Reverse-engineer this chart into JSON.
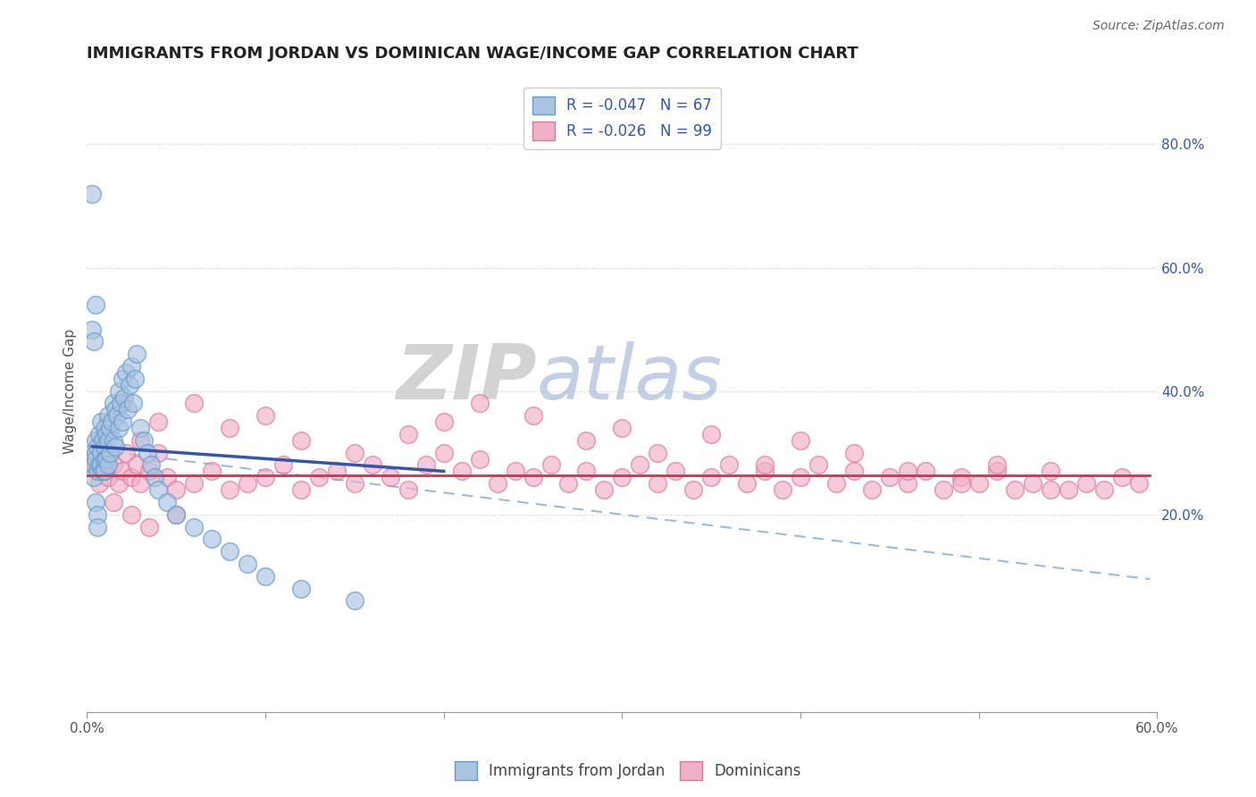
{
  "title": "IMMIGRANTS FROM JORDAN VS DOMINICAN WAGE/INCOME GAP CORRELATION CHART",
  "source": "Source: ZipAtlas.com",
  "ylabel": "Wage/Income Gap",
  "xlim": [
    0.0,
    0.6
  ],
  "ylim": [
    -0.12,
    0.92
  ],
  "yticks_right": [
    0.2,
    0.4,
    0.6,
    0.8
  ],
  "ytick_right_labels": [
    "20.0%",
    "40.0%",
    "60.0%",
    "80.0%"
  ],
  "jordan_color": "#aac4e0",
  "jordan_edge": "#6699cc",
  "dominican_color": "#f0b0c8",
  "dominican_edge": "#dd7799",
  "jordan_R": -0.047,
  "jordan_N": 67,
  "dominican_R": -0.026,
  "dominican_N": 99,
  "jordan_line_color": "#3355aa",
  "dominican_line_color": "#cc3355",
  "dashed_line_color": "#99bbdd",
  "watermark_zip": "ZIP",
  "watermark_atlas": "atlas",
  "background_color": "#ffffff",
  "grid_color": "#cccccc",
  "legend_text_color": "#3355bb",
  "title_color": "#222222",
  "jordan_scatter_x": [
    0.003,
    0.004,
    0.004,
    0.005,
    0.005,
    0.005,
    0.006,
    0.006,
    0.007,
    0.007,
    0.008,
    0.008,
    0.008,
    0.009,
    0.009,
    0.01,
    0.01,
    0.01,
    0.01,
    0.011,
    0.011,
    0.012,
    0.012,
    0.012,
    0.013,
    0.013,
    0.014,
    0.015,
    0.015,
    0.016,
    0.016,
    0.017,
    0.018,
    0.018,
    0.019,
    0.02,
    0.02,
    0.021,
    0.022,
    0.023,
    0.024,
    0.025,
    0.026,
    0.027,
    0.028,
    0.03,
    0.032,
    0.034,
    0.036,
    0.038,
    0.04,
    0.045,
    0.05,
    0.06,
    0.07,
    0.08,
    0.09,
    0.1,
    0.12,
    0.15,
    0.003,
    0.004,
    0.005,
    0.005,
    0.006,
    0.006,
    0.003
  ],
  "jordan_scatter_y": [
    0.3,
    0.28,
    0.26,
    0.32,
    0.3,
    0.29,
    0.31,
    0.27,
    0.33,
    0.28,
    0.35,
    0.3,
    0.28,
    0.32,
    0.27,
    0.34,
    0.31,
    0.29,
    0.27,
    0.33,
    0.29,
    0.36,
    0.32,
    0.28,
    0.34,
    0.3,
    0.35,
    0.38,
    0.32,
    0.37,
    0.31,
    0.36,
    0.4,
    0.34,
    0.38,
    0.42,
    0.35,
    0.39,
    0.43,
    0.37,
    0.41,
    0.44,
    0.38,
    0.42,
    0.46,
    0.34,
    0.32,
    0.3,
    0.28,
    0.26,
    0.24,
    0.22,
    0.2,
    0.18,
    0.16,
    0.14,
    0.12,
    0.1,
    0.08,
    0.06,
    0.5,
    0.48,
    0.54,
    0.22,
    0.2,
    0.18,
    0.72
  ],
  "dominican_scatter_x": [
    0.005,
    0.007,
    0.008,
    0.01,
    0.012,
    0.015,
    0.018,
    0.02,
    0.022,
    0.025,
    0.028,
    0.03,
    0.035,
    0.04,
    0.045,
    0.05,
    0.06,
    0.07,
    0.08,
    0.09,
    0.1,
    0.11,
    0.12,
    0.13,
    0.14,
    0.15,
    0.16,
    0.17,
    0.18,
    0.19,
    0.2,
    0.21,
    0.22,
    0.23,
    0.24,
    0.25,
    0.26,
    0.27,
    0.28,
    0.29,
    0.3,
    0.31,
    0.32,
    0.33,
    0.34,
    0.35,
    0.36,
    0.37,
    0.38,
    0.39,
    0.4,
    0.41,
    0.42,
    0.43,
    0.44,
    0.45,
    0.46,
    0.47,
    0.48,
    0.49,
    0.5,
    0.51,
    0.52,
    0.53,
    0.54,
    0.55,
    0.56,
    0.57,
    0.58,
    0.59,
    0.008,
    0.012,
    0.02,
    0.03,
    0.04,
    0.06,
    0.08,
    0.1,
    0.12,
    0.15,
    0.18,
    0.2,
    0.22,
    0.25,
    0.28,
    0.3,
    0.32,
    0.35,
    0.38,
    0.4,
    0.43,
    0.46,
    0.49,
    0.51,
    0.54,
    0.015,
    0.025,
    0.035,
    0.05
  ],
  "dominican_scatter_y": [
    0.28,
    0.25,
    0.3,
    0.27,
    0.26,
    0.28,
    0.25,
    0.27,
    0.3,
    0.26,
    0.28,
    0.25,
    0.27,
    0.3,
    0.26,
    0.24,
    0.25,
    0.27,
    0.24,
    0.25,
    0.26,
    0.28,
    0.24,
    0.26,
    0.27,
    0.25,
    0.28,
    0.26,
    0.24,
    0.28,
    0.3,
    0.27,
    0.29,
    0.25,
    0.27,
    0.26,
    0.28,
    0.25,
    0.27,
    0.24,
    0.26,
    0.28,
    0.25,
    0.27,
    0.24,
    0.26,
    0.28,
    0.25,
    0.27,
    0.24,
    0.26,
    0.28,
    0.25,
    0.27,
    0.24,
    0.26,
    0.25,
    0.27,
    0.24,
    0.26,
    0.25,
    0.27,
    0.24,
    0.25,
    0.27,
    0.24,
    0.25,
    0.24,
    0.26,
    0.25,
    0.32,
    0.35,
    0.38,
    0.32,
    0.35,
    0.38,
    0.34,
    0.36,
    0.32,
    0.3,
    0.33,
    0.35,
    0.38,
    0.36,
    0.32,
    0.34,
    0.3,
    0.33,
    0.28,
    0.32,
    0.3,
    0.27,
    0.25,
    0.28,
    0.24,
    0.22,
    0.2,
    0.18,
    0.2
  ],
  "jordan_line_x": [
    0.003,
    0.2
  ],
  "jordan_line_y": [
    0.31,
    0.27
  ],
  "dominican_line_x": [
    0.0,
    0.596
  ],
  "dominican_line_y": [
    0.263,
    0.263
  ],
  "dashed_line_x": [
    0.003,
    0.596
  ],
  "dashed_line_y": [
    0.305,
    0.095
  ]
}
